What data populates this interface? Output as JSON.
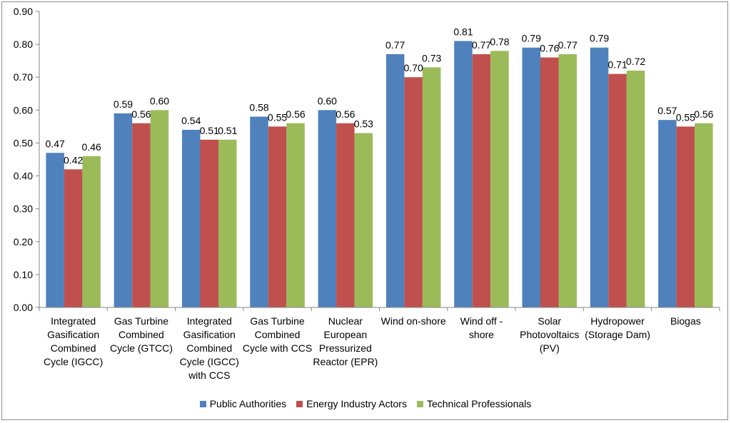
{
  "chart_data": {
    "type": "bar",
    "title": "",
    "xlabel": "",
    "ylabel": "",
    "ylim": [
      0,
      0.9
    ],
    "yticks": [
      "0.00",
      "0.10",
      "0.20",
      "0.30",
      "0.40",
      "0.50",
      "0.60",
      "0.70",
      "0.80",
      "0.90"
    ],
    "grid": false,
    "legend_position": "bottom",
    "categories": [
      [
        "Integrated",
        "Gasification",
        "Combined",
        "Cycle (IGCC)"
      ],
      [
        "Gas Turbine",
        "Combined",
        "Cycle (GTCC)"
      ],
      [
        "Integrated",
        "Gasification",
        "Combined",
        "Cycle (IGCC)",
        "with CCS"
      ],
      [
        "Gas Turbine",
        "Combined",
        "Cycle with CCS"
      ],
      [
        "Nuclear",
        "European",
        "Pressurized",
        "Reactor (EPR)"
      ],
      [
        "Wind on-shore"
      ],
      [
        "Wind off -",
        "shore"
      ],
      [
        "Solar",
        "Photovoltaics",
        "(PV)"
      ],
      [
        "Hydropower",
        "(Storage Dam)"
      ],
      [
        "Biogas"
      ]
    ],
    "series": [
      {
        "name": "Public Authorities",
        "color": "#4f81bd",
        "values": [
          0.47,
          0.59,
          0.54,
          0.58,
          0.6,
          0.77,
          0.81,
          0.79,
          0.79,
          0.57
        ],
        "labels": [
          "0.47",
          "0.59",
          "0.54",
          "0.58",
          "0.60",
          "0.77",
          "0.81",
          "0.79",
          "0.79",
          "0.57"
        ]
      },
      {
        "name": "Energy Industry Actors",
        "color": "#c0504d",
        "values": [
          0.42,
          0.56,
          0.51,
          0.55,
          0.56,
          0.7,
          0.77,
          0.76,
          0.71,
          0.55
        ],
        "labels": [
          "0.42",
          "0.56",
          "0.51",
          "0.55",
          "0.56",
          "0.70",
          "0.77",
          "0.76",
          "0.71",
          "0.55"
        ]
      },
      {
        "name": "Technical Professionals",
        "color": "#9bbb59",
        "values": [
          0.46,
          0.6,
          0.51,
          0.56,
          0.53,
          0.73,
          0.78,
          0.77,
          0.72,
          0.56
        ],
        "labels": [
          "0.46",
          "0.60",
          "0.51",
          "0.56",
          "0.53",
          "0.73",
          "0.78",
          "0.77",
          "0.72",
          "0.56"
        ]
      }
    ]
  }
}
